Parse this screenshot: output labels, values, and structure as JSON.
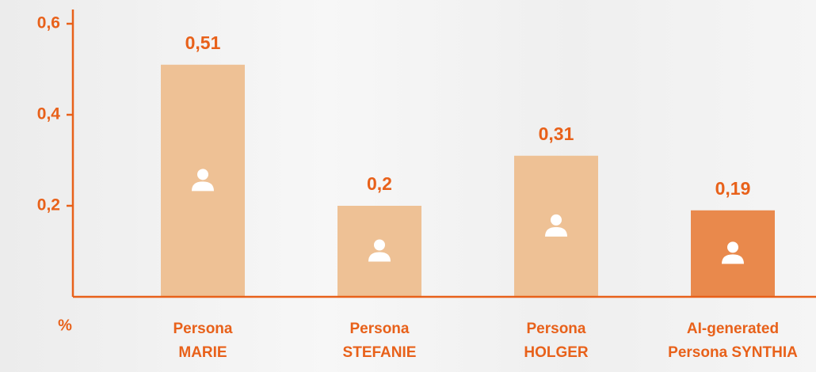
{
  "chart_data": {
    "type": "bar",
    "categories": [
      [
        "Persona",
        "MARIE"
      ],
      [
        "Persona",
        "STEFANIE"
      ],
      [
        "Persona",
        "HOLGER"
      ],
      [
        "AI-generated",
        "Persona SYNTHIA"
      ]
    ],
    "values": [
      0.51,
      0.2,
      0.31,
      0.19
    ],
    "value_labels": [
      "0,51",
      "0,2",
      "0,31",
      "0,19"
    ],
    "colors": [
      "#eec195",
      "#eec195",
      "#eec195",
      "#e9894c"
    ],
    "ylabel": "%",
    "ylim": [
      0,
      0.6
    ],
    "yticks": [
      {
        "value": 0.2,
        "label": "0,2"
      },
      {
        "value": 0.4,
        "label": "0,4"
      },
      {
        "value": 0.6,
        "label": "0,6"
      }
    ],
    "grid": false
  }
}
